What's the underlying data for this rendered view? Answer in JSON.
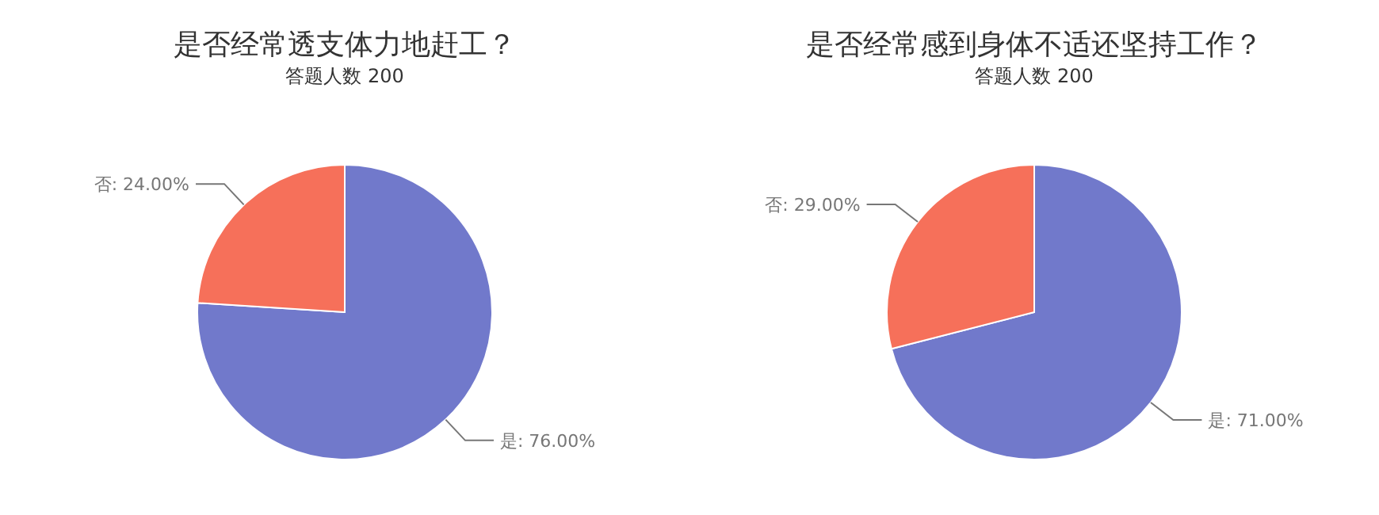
{
  "chart_data": [
    {
      "type": "pie",
      "title": "是否经常透支体力地赶工？",
      "subtitle": "答题人数 200",
      "categories": [
        "是",
        "否"
      ],
      "values": [
        76,
        24
      ],
      "value_labels": [
        "76.00%",
        "24.00%"
      ],
      "colors": [
        "#7179cb",
        "#f6705a"
      ],
      "legend": false
    },
    {
      "type": "pie",
      "title": "是否经常感到身体不适还坚持工作？",
      "subtitle": "答题人数 200",
      "categories": [
        "是",
        "否"
      ],
      "values": [
        71,
        29
      ],
      "value_labels": [
        "71.00%",
        "29.00%"
      ],
      "colors": [
        "#7179cb",
        "#f6705a"
      ],
      "legend": false
    }
  ]
}
